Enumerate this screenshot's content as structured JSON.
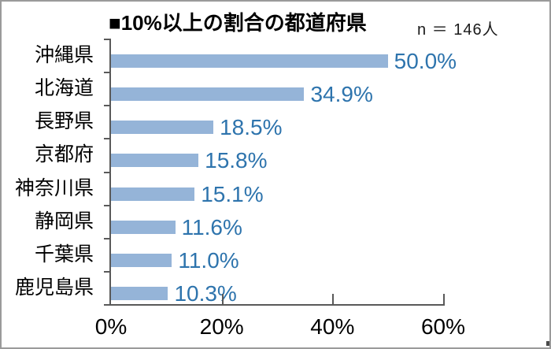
{
  "header": {
    "title": "■10%以上の割合の都道府県",
    "sample_size": "n ＝ 146人"
  },
  "chart_data": {
    "type": "bar",
    "orientation": "horizontal",
    "title": "■10%以上の割合の都道府県",
    "sample_note": "n ＝ 146人",
    "categories": [
      "沖縄県",
      "北海道",
      "長野県",
      "京都府",
      "神奈川県",
      "静岡県",
      "千葉県",
      "鹿児島県"
    ],
    "values": [
      50.0,
      34.9,
      18.5,
      15.8,
      15.1,
      11.6,
      11.0,
      10.3
    ],
    "value_labels": [
      "50.0%",
      "34.9%",
      "18.5%",
      "15.8%",
      "15.1%",
      "11.6%",
      "11.0%",
      "10.3%"
    ],
    "xlim": [
      0,
      60
    ],
    "x_ticks": [
      0,
      20,
      40,
      60
    ],
    "x_tick_labels": [
      "0%",
      "20%",
      "40%",
      "60%"
    ],
    "legend": "none",
    "grid": false,
    "bar_color": "#95b4d8",
    "value_label_color": "#2e74ad",
    "axis_color": "#595959"
  }
}
